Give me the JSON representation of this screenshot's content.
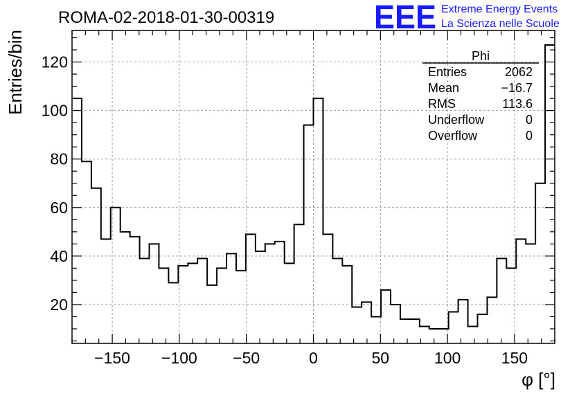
{
  "header": {
    "run_id": "ROMA-02-2018-01-30-00319",
    "logo": "EEE",
    "logo_line1": "Extreme Energy Events",
    "logo_line2": "La Scienza nelle Scuole",
    "logo_color": "#1a1aff"
  },
  "stats_box": {
    "title": "Phi",
    "rows": [
      {
        "label": "Entries",
        "value": "2062"
      },
      {
        "label": "Mean",
        "value": "−16.7"
      },
      {
        "label": "RMS",
        "value": "113.6"
      },
      {
        "label": "Underflow",
        "value": "0"
      },
      {
        "label": "Overflow",
        "value": "0"
      }
    ]
  },
  "chart_data": {
    "type": "histogram",
    "title": "ROMA-02-2018-01-30-00319",
    "xlabel": "φ [°]",
    "ylabel": "Entries/bin",
    "xlim": [
      -180,
      180
    ],
    "ylim": [
      4,
      133
    ],
    "bin_width": 7.2,
    "bin_edges_start": -180,
    "x_ticks": [
      -150,
      -100,
      -50,
      0,
      50,
      100,
      150
    ],
    "x_tick_labels": [
      "−150",
      "−100",
      "−50",
      "0",
      "50",
      "100",
      "150"
    ],
    "y_ticks": [
      20,
      40,
      60,
      80,
      100,
      120
    ],
    "y_tick_labels": [
      "20",
      "40",
      "60",
      "80",
      "100",
      "120"
    ],
    "grid": true,
    "values": [
      105,
      79,
      68,
      47,
      60,
      50,
      48,
      39,
      45,
      35,
      29,
      36,
      37,
      39,
      28,
      35,
      41,
      34,
      49,
      42,
      45,
      46,
      37,
      53,
      94,
      105,
      49,
      39,
      36,
      19,
      21,
      15,
      26,
      20,
      14,
      14,
      11,
      10,
      10,
      17,
      22,
      11,
      16,
      23,
      39,
      35,
      47,
      45,
      70,
      127
    ],
    "line_color": "#000000"
  }
}
